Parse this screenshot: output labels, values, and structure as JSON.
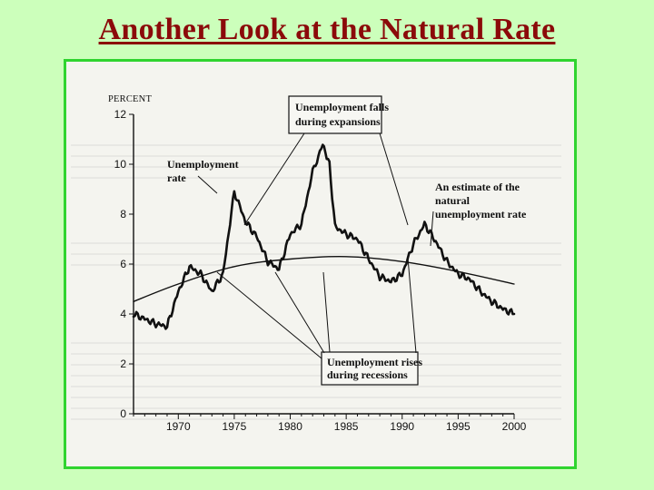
{
  "slide": {
    "title": "Another Look at the Natural Rate"
  },
  "chart_data": {
    "type": "line",
    "title": "",
    "ylabel": "PERCENT",
    "xlabel": "",
    "xlim": [
      1966,
      2000
    ],
    "ylim": [
      0,
      12
    ],
    "x_ticks": [
      1970,
      1975,
      1980,
      1985,
      1990,
      1995,
      2000
    ],
    "y_ticks": [
      0,
      2,
      4,
      6,
      8,
      10,
      12
    ],
    "grid": false,
    "series": [
      {
        "name": "Unemployment rate",
        "color": "#111111",
        "style": "wiggly",
        "points": [
          [
            1966,
            4.0
          ],
          [
            1967,
            3.8
          ],
          [
            1968,
            3.6
          ],
          [
            1969,
            3.5
          ],
          [
            1970,
            4.9
          ],
          [
            1971,
            5.9
          ],
          [
            1972,
            5.6
          ],
          [
            1973,
            4.9
          ],
          [
            1974,
            5.6
          ],
          [
            1975,
            8.9
          ],
          [
            1976,
            7.7
          ],
          [
            1977,
            7.1
          ],
          [
            1978,
            6.1
          ],
          [
            1979,
            5.8
          ],
          [
            1980,
            7.2
          ],
          [
            1981,
            7.6
          ],
          [
            1982,
            9.7
          ],
          [
            1982.9,
            10.8
          ],
          [
            1983.5,
            10.0
          ],
          [
            1984,
            7.5
          ],
          [
            1985,
            7.2
          ],
          [
            1986,
            7.0
          ],
          [
            1987,
            6.2
          ],
          [
            1988,
            5.5
          ],
          [
            1989,
            5.3
          ],
          [
            1990,
            5.6
          ],
          [
            1991,
            6.8
          ],
          [
            1992,
            7.6
          ],
          [
            1993,
            6.9
          ],
          [
            1994,
            6.1
          ],
          [
            1995,
            5.6
          ],
          [
            1996,
            5.4
          ],
          [
            1997,
            4.9
          ],
          [
            1998,
            4.5
          ],
          [
            1999,
            4.2
          ],
          [
            2000,
            4.0
          ]
        ]
      },
      {
        "name": "An estimate of the natural unemployment rate",
        "color": "#111111",
        "style": "smooth",
        "points": [
          [
            1966,
            4.5
          ],
          [
            1970,
            5.2
          ],
          [
            1975,
            5.9
          ],
          [
            1980,
            6.2
          ],
          [
            1985,
            6.3
          ],
          [
            1990,
            6.1
          ],
          [
            1995,
            5.7
          ],
          [
            2000,
            5.2
          ]
        ]
      }
    ],
    "annotations": [
      {
        "text": [
          "Unemployment falls",
          "during expansions"
        ],
        "boxed": true
      },
      {
        "text": [
          "Unemployment",
          "rate"
        ],
        "boxed": false
      },
      {
        "text": [
          "An estimate of the",
          "natural",
          "unemployment rate"
        ],
        "boxed": false
      },
      {
        "text": [
          "Unemployment rises",
          "during recessions"
        ],
        "boxed": true
      }
    ]
  }
}
